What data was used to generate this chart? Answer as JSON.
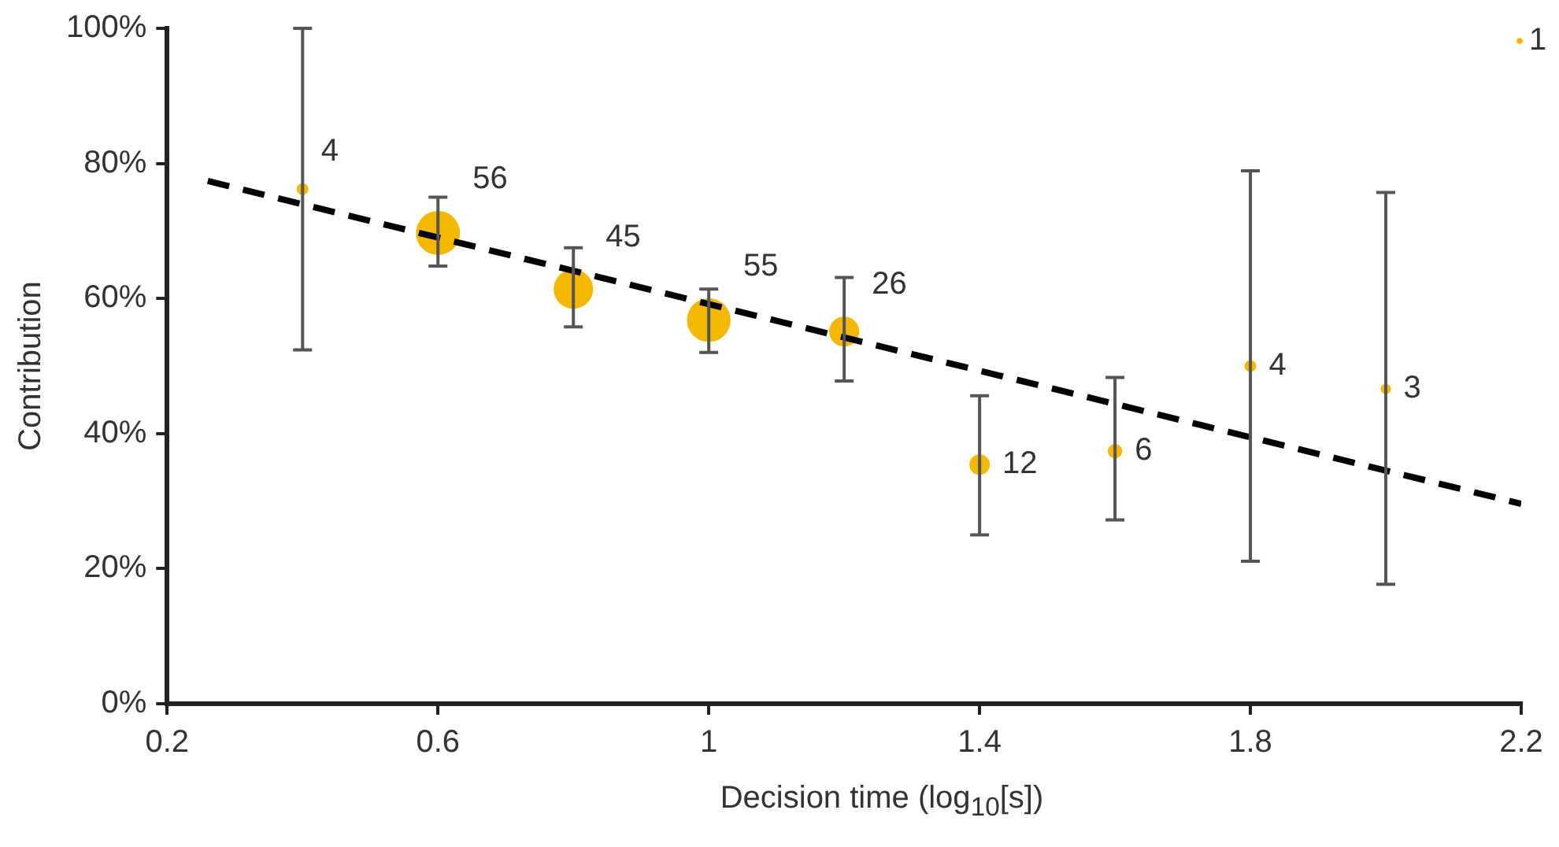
{
  "chart_data": {
    "type": "bubble",
    "xlabel": "Decision time (log$_{10}$[s])",
    "ylabel": "Contribution",
    "x": [
      0.4,
      0.6,
      0.8,
      1.0,
      1.2,
      1.4,
      1.6,
      1.8,
      2.0
    ],
    "series": [
      {
        "color": "#f5b800",
        "values": [
          76.2,
          69.7,
          61.4,
          56.8,
          55.1,
          35.4,
          37.4,
          50,
          46.6
        ],
        "sizes": [
          4,
          56,
          45,
          55,
          26,
          12,
          6,
          4,
          3
        ],
        "value_labels": [
          "4",
          "56",
          "45",
          "55",
          "26",
          "12",
          "6",
          "4",
          "3"
        ],
        "errors": [
          [
            52.4,
            100
          ],
          [
            64.8,
            75
          ],
          [
            55.8,
            67.5
          ],
          [
            52,
            61.4
          ],
          [
            47.8,
            63.1
          ],
          [
            25,
            45.6
          ],
          [
            27.2,
            48.3
          ],
          [
            21.1,
            78.9
          ],
          [
            17.7,
            75.7
          ]
        ]
      },
      {
        "type": "line",
        "color": "#000000",
        "line_style": "dashed",
        "marker": "none",
        "x": [
          0.26,
          2.2
        ],
        "values": [
          77.4,
          29.6
        ]
      }
    ],
    "size_legend": [
      1
    ],
    "marker": "circle",
    "grid": false,
    "xlim": [
      0.2,
      2.2
    ],
    "xticks": [
      0.2,
      0.6,
      1,
      1.4,
      1.8,
      2.2
    ],
    "ylim": [
      0,
      100
    ],
    "yticks": [
      {
        "value": 0,
        "label": "0%"
      },
      {
        "value": 20,
        "label": "20%"
      },
      {
        "value": 40,
        "label": "40%"
      },
      {
        "value": 60,
        "label": "60%"
      },
      {
        "value": 80,
        "label": "80%"
      },
      {
        "value": 100,
        "label": "100%"
      }
    ]
  }
}
